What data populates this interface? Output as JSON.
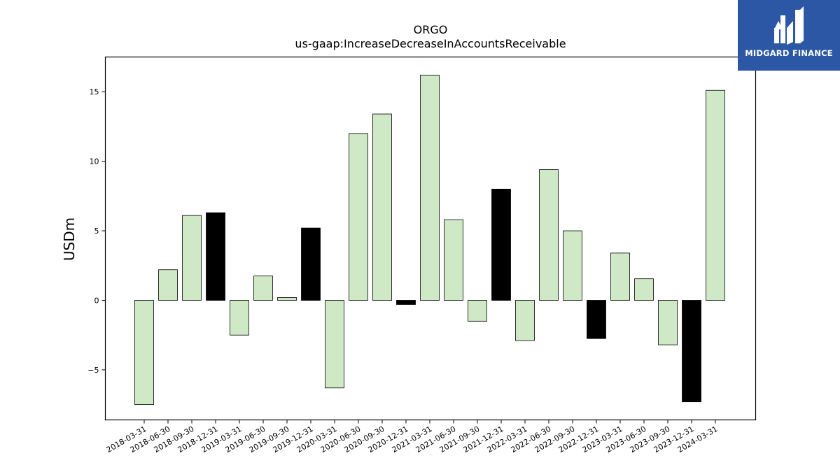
{
  "logo": {
    "text": "MIDGARD FINANCE",
    "background": "#2b57a5"
  },
  "chart_data": {
    "type": "bar",
    "title_line1": "ORGO",
    "title_line2": "us-gaap:IncreaseDecreaseInAccountsReceivable",
    "xlabel": "",
    "ylabel": "USDm",
    "ylim": [
      -8.6,
      17.5
    ],
    "yticks": [
      -5,
      0,
      5,
      10,
      15
    ],
    "ytick_labels": [
      "−5",
      "0",
      "5",
      "10",
      "15"
    ],
    "grid": false,
    "colors": {
      "quarter": "#cfe9c7",
      "year_end": "#000000",
      "edge": "#000000"
    },
    "categories": [
      "2018-03-31",
      "2018-06-30",
      "2018-09-30",
      "2018-12-31",
      "2019-03-31",
      "2019-06-30",
      "2019-09-30",
      "2019-12-31",
      "2020-03-31",
      "2020-06-30",
      "2020-09-30",
      "2020-12-31",
      "2021-03-31",
      "2021-06-30",
      "2021-09-30",
      "2021-12-31",
      "2022-03-31",
      "2022-06-30",
      "2022-09-30",
      "2022-12-31",
      "2023-03-31",
      "2023-06-30",
      "2023-09-30",
      "2023-12-31",
      "2024-03-31"
    ],
    "values": [
      -7.5,
      2.2,
      6.1,
      6.3,
      -2.5,
      1.75,
      0.2,
      5.2,
      -6.3,
      12.0,
      13.4,
      -0.3,
      16.2,
      5.8,
      -1.5,
      8.0,
      -2.9,
      9.4,
      5.0,
      -2.75,
      3.4,
      1.55,
      -3.2,
      -7.3,
      15.1
    ],
    "highlight": [
      false,
      false,
      false,
      true,
      false,
      false,
      false,
      true,
      false,
      false,
      false,
      true,
      false,
      false,
      false,
      true,
      false,
      false,
      false,
      true,
      false,
      false,
      false,
      true,
      false
    ]
  }
}
